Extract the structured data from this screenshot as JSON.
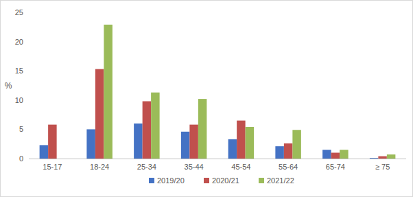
{
  "chart_data": {
    "type": "bar",
    "y_label": "%",
    "categories": [
      "15-17",
      "18-24",
      "25-34",
      "35-44",
      "45-54",
      "55-64",
      "65-74",
      "≥ 75"
    ],
    "series": [
      {
        "name": "2019/20",
        "color": "#4472c4",
        "values": [
          2.3,
          5.0,
          6.0,
          4.6,
          3.3,
          2.1,
          1.5,
          0.1
        ]
      },
      {
        "name": "2020/21",
        "color": "#c0504d",
        "values": [
          5.8,
          15.3,
          9.8,
          5.8,
          6.5,
          2.6,
          1.0,
          0.4
        ]
      },
      {
        "name": "2021/22",
        "color": "#9bbb59",
        "values": [
          null,
          22.9,
          11.3,
          10.2,
          5.4,
          4.9,
          1.5,
          0.7
        ]
      }
    ],
    "ylim": [
      0,
      25
    ],
    "yticks": [
      0,
      5,
      10,
      15,
      20,
      25
    ],
    "grid": false,
    "legend": "bottom"
  }
}
